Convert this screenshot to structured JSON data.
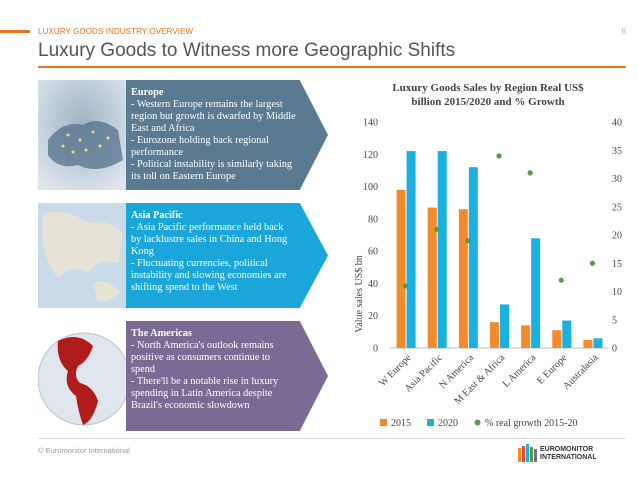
{
  "header": {
    "kicker": "LUXURY GOODS INDUSTRY OVERVIEW",
    "page_number": "6",
    "title": "Luxury Goods to Witness more Geographic Shifts"
  },
  "regions": [
    {
      "heading": "Europe",
      "body": "- Western Europe remains the largest region but growth is dwarfed by Middle East and Africa\n- Eurozone holding back regional performance\n- Political instability is similarly taking its toll on Eastern Europe",
      "color": "#5a7a92",
      "image": "europe-satellite-map"
    },
    {
      "heading": "Asia Pacific",
      "body": "- Asia Pacific performance held back by lacklustre sales in China and Hong Kong\n- Fluctuating currencies, political instability and slowing economies are shifting spend to the West",
      "color": "#1aa6d9",
      "image": "asia-pacific-satellite-map"
    },
    {
      "heading": "The Americas",
      "body": "- North America's outlook remains positive as consumers continue to spend\n- There'll be a notable rise in luxury spending in Latin America despite Brazil's economic slowdown",
      "color": "#7b6a93",
      "image": "americas-globe"
    }
  ],
  "footer": {
    "copyright": "© Euromonitor International",
    "logo_line1": "EUROMONITOR",
    "logo_line2": "INTERNATIONAL"
  },
  "chart_data": {
    "type": "bar",
    "title_line1": "Luxury Goods Sales by Region Real US$",
    "title_line2": "billion 2015/2020 and % Growth",
    "ylabel": "Value sales US$ bn",
    "categories": [
      "W Europe",
      "Asia Pacific",
      "N America",
      "M East & Africa",
      "L America",
      "E Europe",
      "Australasia"
    ],
    "series": [
      {
        "name": "2015",
        "type": "bar",
        "axis": "left",
        "color": "#f58a2b",
        "values": [
          98,
          87,
          86,
          16,
          14,
          11,
          5
        ]
      },
      {
        "name": "2020",
        "type": "bar",
        "axis": "left",
        "color": "#1ab0e0",
        "values": [
          122,
          122,
          112,
          27,
          68,
          17,
          6
        ]
      },
      {
        "name": "% real growth 2015-20",
        "type": "scatter",
        "axis": "right",
        "color": "#5a9a48",
        "values": [
          11,
          21,
          19,
          34,
          31,
          12,
          15
        ]
      }
    ],
    "ylim": [
      0,
      140
    ],
    "yticks": [
      0,
      20,
      40,
      60,
      80,
      100,
      120,
      140
    ],
    "y2lim": [
      0,
      40
    ],
    "y2ticks": [
      0,
      5,
      10,
      15,
      20,
      25,
      30,
      35,
      40
    ],
    "grid": false,
    "legend_position": "bottom"
  }
}
